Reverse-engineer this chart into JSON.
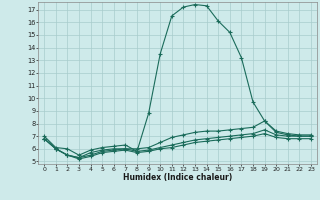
{
  "xlabel": "Humidex (Indice chaleur)",
  "bg_color": "#ceeaea",
  "grid_color": "#a8cccc",
  "line_color": "#1a6b5a",
  "xlim": [
    -0.5,
    23.5
  ],
  "ylim": [
    4.8,
    17.6
  ],
  "xticks": [
    0,
    1,
    2,
    3,
    4,
    5,
    6,
    7,
    8,
    9,
    10,
    11,
    12,
    13,
    14,
    15,
    16,
    17,
    18,
    19,
    20,
    21,
    22,
    23
  ],
  "yticks": [
    5,
    6,
    7,
    8,
    9,
    10,
    11,
    12,
    13,
    14,
    15,
    16,
    17
  ],
  "series": [
    {
      "x": [
        0,
        1,
        2,
        3,
        4,
        5,
        6,
        7,
        8,
        9,
        10,
        11,
        12,
        13,
        14,
        15,
        16,
        17,
        18,
        19,
        20,
        21,
        22,
        23
      ],
      "y": [
        7.0,
        6.1,
        6.0,
        5.5,
        5.9,
        6.1,
        6.2,
        6.3,
        5.8,
        8.8,
        13.5,
        16.5,
        17.2,
        17.4,
        17.3,
        16.1,
        15.2,
        13.2,
        9.7,
        8.2,
        7.4,
        7.2,
        7.1,
        7.1
      ]
    },
    {
      "x": [
        0,
        1,
        2,
        3,
        4,
        5,
        6,
        7,
        8,
        9,
        10,
        11,
        12,
        13,
        14,
        15,
        16,
        17,
        18,
        19,
        20,
        21,
        22,
        23
      ],
      "y": [
        6.8,
        6.0,
        5.5,
        5.3,
        5.7,
        5.9,
        6.0,
        6.0,
        6.0,
        6.1,
        6.5,
        6.9,
        7.1,
        7.3,
        7.4,
        7.4,
        7.5,
        7.6,
        7.7,
        8.2,
        7.3,
        7.1,
        7.0,
        7.0
      ]
    },
    {
      "x": [
        0,
        1,
        2,
        3,
        4,
        5,
        6,
        7,
        8,
        9,
        10,
        11,
        12,
        13,
        14,
        15,
        16,
        17,
        18,
        19,
        20,
        21,
        22,
        23
      ],
      "y": [
        6.8,
        6.0,
        5.5,
        5.3,
        5.5,
        5.8,
        5.9,
        6.0,
        5.8,
        5.9,
        6.1,
        6.3,
        6.5,
        6.7,
        6.8,
        6.9,
        7.0,
        7.1,
        7.2,
        7.5,
        7.1,
        7.0,
        7.0,
        7.0
      ]
    },
    {
      "x": [
        0,
        1,
        2,
        3,
        4,
        5,
        6,
        7,
        8,
        9,
        10,
        11,
        12,
        13,
        14,
        15,
        16,
        17,
        18,
        19,
        20,
        21,
        22,
        23
      ],
      "y": [
        6.8,
        6.0,
        5.5,
        5.2,
        5.4,
        5.7,
        5.8,
        5.9,
        5.7,
        5.8,
        6.0,
        6.1,
        6.3,
        6.5,
        6.6,
        6.7,
        6.8,
        6.9,
        7.0,
        7.2,
        6.9,
        6.8,
        6.8,
        6.8
      ]
    }
  ]
}
